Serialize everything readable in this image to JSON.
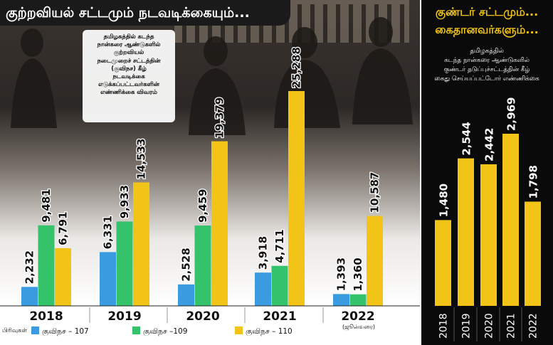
{
  "left_panel": {
    "title": "குற்றவியல் சட்டமும் நடவடிக்கையும்...",
    "info_lines": [
      "தமிழகத்தில் கடந்த",
      "நான்கரை ஆண்டுகளில்",
      "குற்றவியல்",
      "நடைமுறைச் சட்டத்தின்",
      "(குவிநச) கீழ்",
      "நடவடிக்கை",
      "எடுக்கப்பட்டவர்களின்",
      "எண்ணிக்கை விவரம்"
    ],
    "legend_prefix": "பிரிவுகள்",
    "note_2022": "(ஜூன்வரை)"
  },
  "right_panel": {
    "title_lines": [
      "குண்டர் சட்டமும்...",
      "கைதானவர்களும்..."
    ],
    "desc_lines": [
      "தமிழகத்தில்",
      "கடந்த நான்கரை ஆண்டுகளில்",
      "குண்டர் தடுப்புச்சட்டத்தின் கீழ்",
      "கைது செய்யப்பட்டோர் எண்ணிக்கை"
    ]
  },
  "colors": {
    "blue": "#3b9be0",
    "green": "#34c26a",
    "yellow": "#f2c418",
    "dark": "#1a1a1a"
  },
  "chart_data": [
    {
      "type": "bar",
      "title": "குற்றவியல் சட்டமும் நடவடிக்கையும்...",
      "categories": [
        "2018",
        "2019",
        "2020",
        "2021",
        "2022"
      ],
      "value_labels": [
        [
          "2,232",
          "9,481",
          "6,791"
        ],
        [
          "6,331",
          "9,933",
          "14,533"
        ],
        [
          "2,528",
          "9,459",
          "19,379"
        ],
        [
          "3,918",
          "4,711",
          "25,288"
        ],
        [
          "1,393",
          "1,360",
          "10,587"
        ]
      ],
      "series": [
        {
          "name": "குவிநச – 107",
          "values": [
            2232,
            6331,
            2528,
            3918,
            1393
          ],
          "color": "#3b9be0"
        },
        {
          "name": "குவிநச –109",
          "values": [
            9481,
            9933,
            9459,
            4711,
            1360
          ],
          "color": "#34c26a"
        },
        {
          "name": "குவிநச – 110",
          "values": [
            6791,
            14533,
            19379,
            25288,
            10587
          ],
          "color": "#f2c418"
        }
      ],
      "ylim": [
        0,
        27000
      ]
    },
    {
      "type": "bar",
      "title": "குண்டர் சட்டமும்... கைதானவர்களும்...",
      "categories": [
        "2018",
        "2019",
        "2020",
        "2021",
        "2022"
      ],
      "value_labels": [
        "1,480",
        "2,544",
        "2,442",
        "2,969",
        "1,798"
      ],
      "values": [
        1480,
        2544,
        2442,
        2969,
        1798
      ],
      "color": "#f2c418",
      "ylim": [
        0,
        3600
      ]
    }
  ]
}
